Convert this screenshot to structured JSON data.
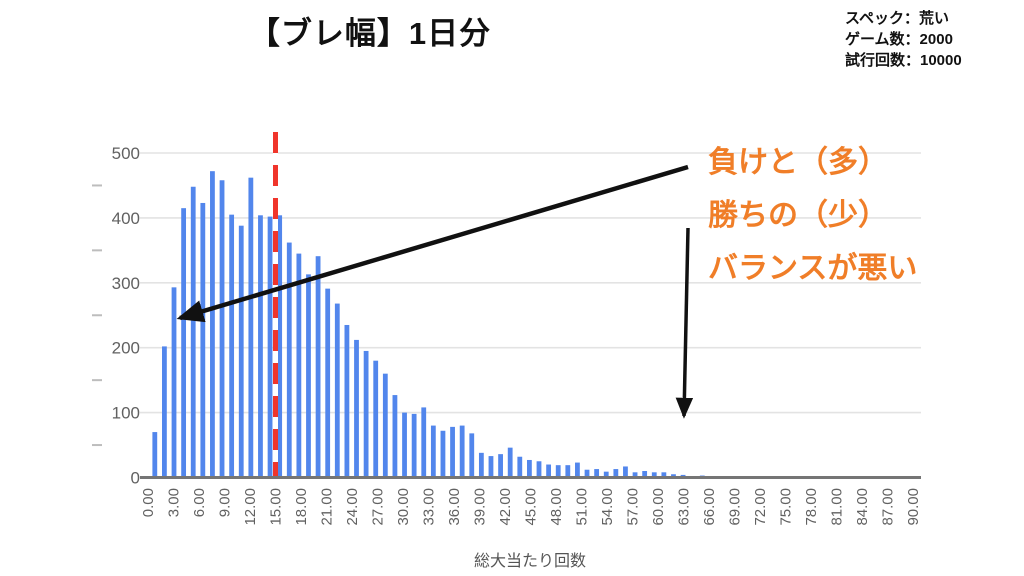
{
  "title": "【ブレ幅】1日分",
  "info": {
    "spec": "スペック：荒い",
    "games": "ゲーム数：2000",
    "trials": "試行回数：10000"
  },
  "annotation": {
    "line1": "負けと（多）",
    "line2": "勝ちの（少）",
    "line3": "バランスが悪い",
    "color": "#F07E28"
  },
  "chart_data": {
    "type": "bar",
    "title": "",
    "xlabel": "総大当たり回数",
    "ylabel": "",
    "xlim": [
      0,
      90
    ],
    "ylim": [
      0,
      500
    ],
    "grid": true,
    "legend": "none",
    "yticks": [
      0,
      100,
      200,
      300,
      400,
      500
    ],
    "y_minor_ticks": [
      50,
      150,
      250,
      350,
      450
    ],
    "xticks": [
      "0.00",
      "3.00",
      "6.00",
      "9.00",
      "12.00",
      "15.00",
      "18.00",
      "21.00",
      "24.00",
      "27.00",
      "30.00",
      "33.00",
      "36.00",
      "39.00",
      "42.00",
      "45.00",
      "48.00",
      "51.00",
      "54.00",
      "57.00",
      "60.00",
      "63.00",
      "66.00",
      "69.00",
      "72.00",
      "75.00",
      "78.00",
      "81.00",
      "84.00",
      "87.00",
      "90.00"
    ],
    "x_start": 0.8,
    "x_step": 1.13,
    "values": [
      70,
      202,
      293,
      415,
      448,
      423,
      472,
      458,
      405,
      388,
      462,
      404,
      402,
      404,
      362,
      345,
      313,
      341,
      291,
      268,
      235,
      212,
      195,
      180,
      160,
      127,
      100,
      98,
      108,
      80,
      72,
      78,
      80,
      68,
      38,
      33,
      36,
      46,
      32,
      27,
      25,
      20,
      19,
      19,
      23,
      12,
      13,
      9,
      13,
      17,
      8,
      10,
      8,
      8,
      5,
      4,
      2,
      3
    ],
    "bar_color": "#5286EC",
    "reference_line": {
      "x": 15,
      "color": "#F0352B",
      "style": "dashed"
    },
    "gridline_color": "#E3E3E3",
    "axis_text_color": "#616161",
    "axis_line_color": "#757575"
  }
}
